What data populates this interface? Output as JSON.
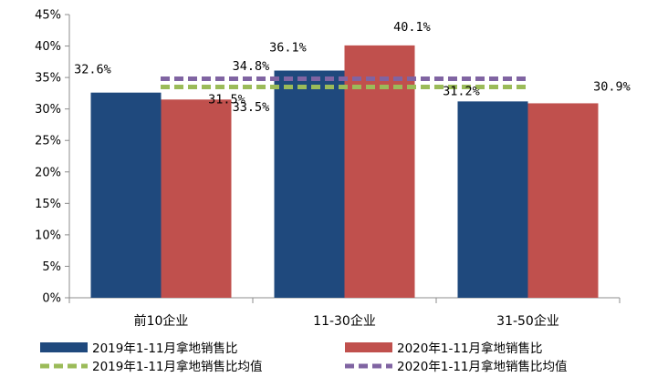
{
  "chart_data": {
    "type": "bar",
    "categories": [
      "前10企业",
      "11-30企业",
      "31-50企业"
    ],
    "series": [
      {
        "name": "2019年1-11月拿地销售比",
        "values": [
          32.6,
          36.1,
          31.2
        ],
        "labels": [
          "32.6%",
          "36.1%",
          "31.2%"
        ],
        "color": "#1f497d"
      },
      {
        "name": "2020年1-11月拿地销售比",
        "values": [
          31.5,
          40.1,
          30.9
        ],
        "labels": [
          "31.5%",
          "40.1%",
          "30.9%"
        ],
        "color": "#c0504d"
      }
    ],
    "averages": [
      {
        "name": "2019年1-11月拿地销售比均值",
        "value": 33.5,
        "label": "33.5%",
        "color": "#9bbb59",
        "style": "dashed"
      },
      {
        "name": "2020年1-11月拿地销售比均值",
        "value": 34.8,
        "label": "34.8%",
        "color": "#8064a2",
        "style": "dashed"
      }
    ],
    "ylim": [
      0,
      45
    ],
    "yticks": [
      0,
      5,
      10,
      15,
      20,
      25,
      30,
      35,
      40,
      45
    ],
    "ytick_labels": [
      "0%",
      "5%",
      "10%",
      "15%",
      "20%",
      "25%",
      "30%",
      "35%",
      "40%",
      "45%"
    ],
    "grid": false,
    "legend_position": "bottom",
    "title": "",
    "xlabel": "",
    "ylabel": ""
  }
}
